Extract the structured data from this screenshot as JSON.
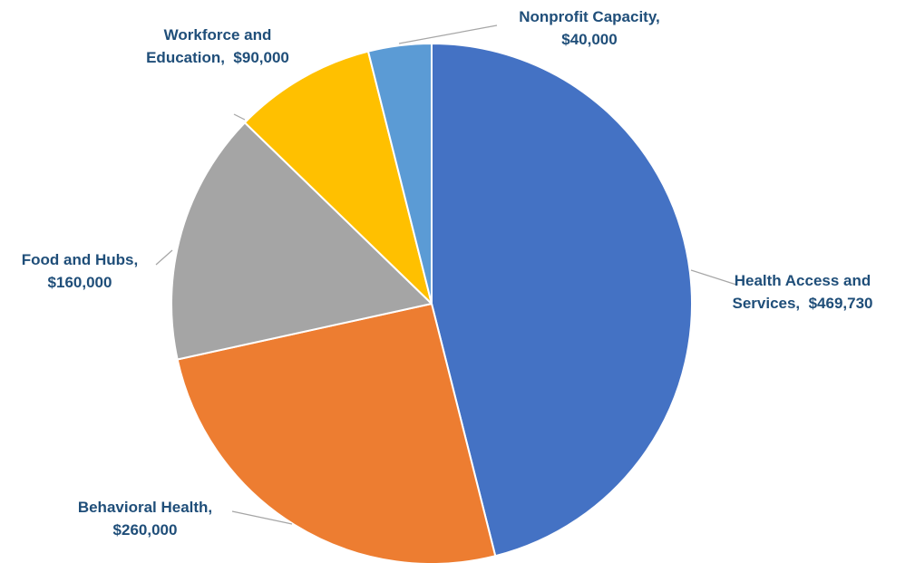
{
  "chart_data": {
    "type": "pie",
    "title": "",
    "start_angle_deg": 0,
    "direction": "clockwise",
    "legend": "none",
    "slices": [
      {
        "name": "Health Access and Services",
        "value": 469730,
        "color": "#4472c4",
        "label_lines": [
          "Health Access and",
          "Services,  $469,730"
        ]
      },
      {
        "name": "Behavioral Health",
        "value": 260000,
        "color": "#ed7d31",
        "label_lines": [
          "Behavioral Health,",
          "$260,000"
        ]
      },
      {
        "name": "Food and Hubs",
        "value": 160000,
        "color": "#a5a5a5",
        "label_lines": [
          "Food and Hubs,",
          "$160,000"
        ]
      },
      {
        "name": "Workforce and Education",
        "value": 90000,
        "color": "#ffc000",
        "label_lines": [
          "Workforce and",
          "Education,  $90,000"
        ]
      },
      {
        "name": "Nonprofit Capacity",
        "value": 40000,
        "color": "#5b9bd5",
        "label_lines": [
          "Nonprofit Capacity,",
          "$40,000"
        ]
      }
    ]
  }
}
